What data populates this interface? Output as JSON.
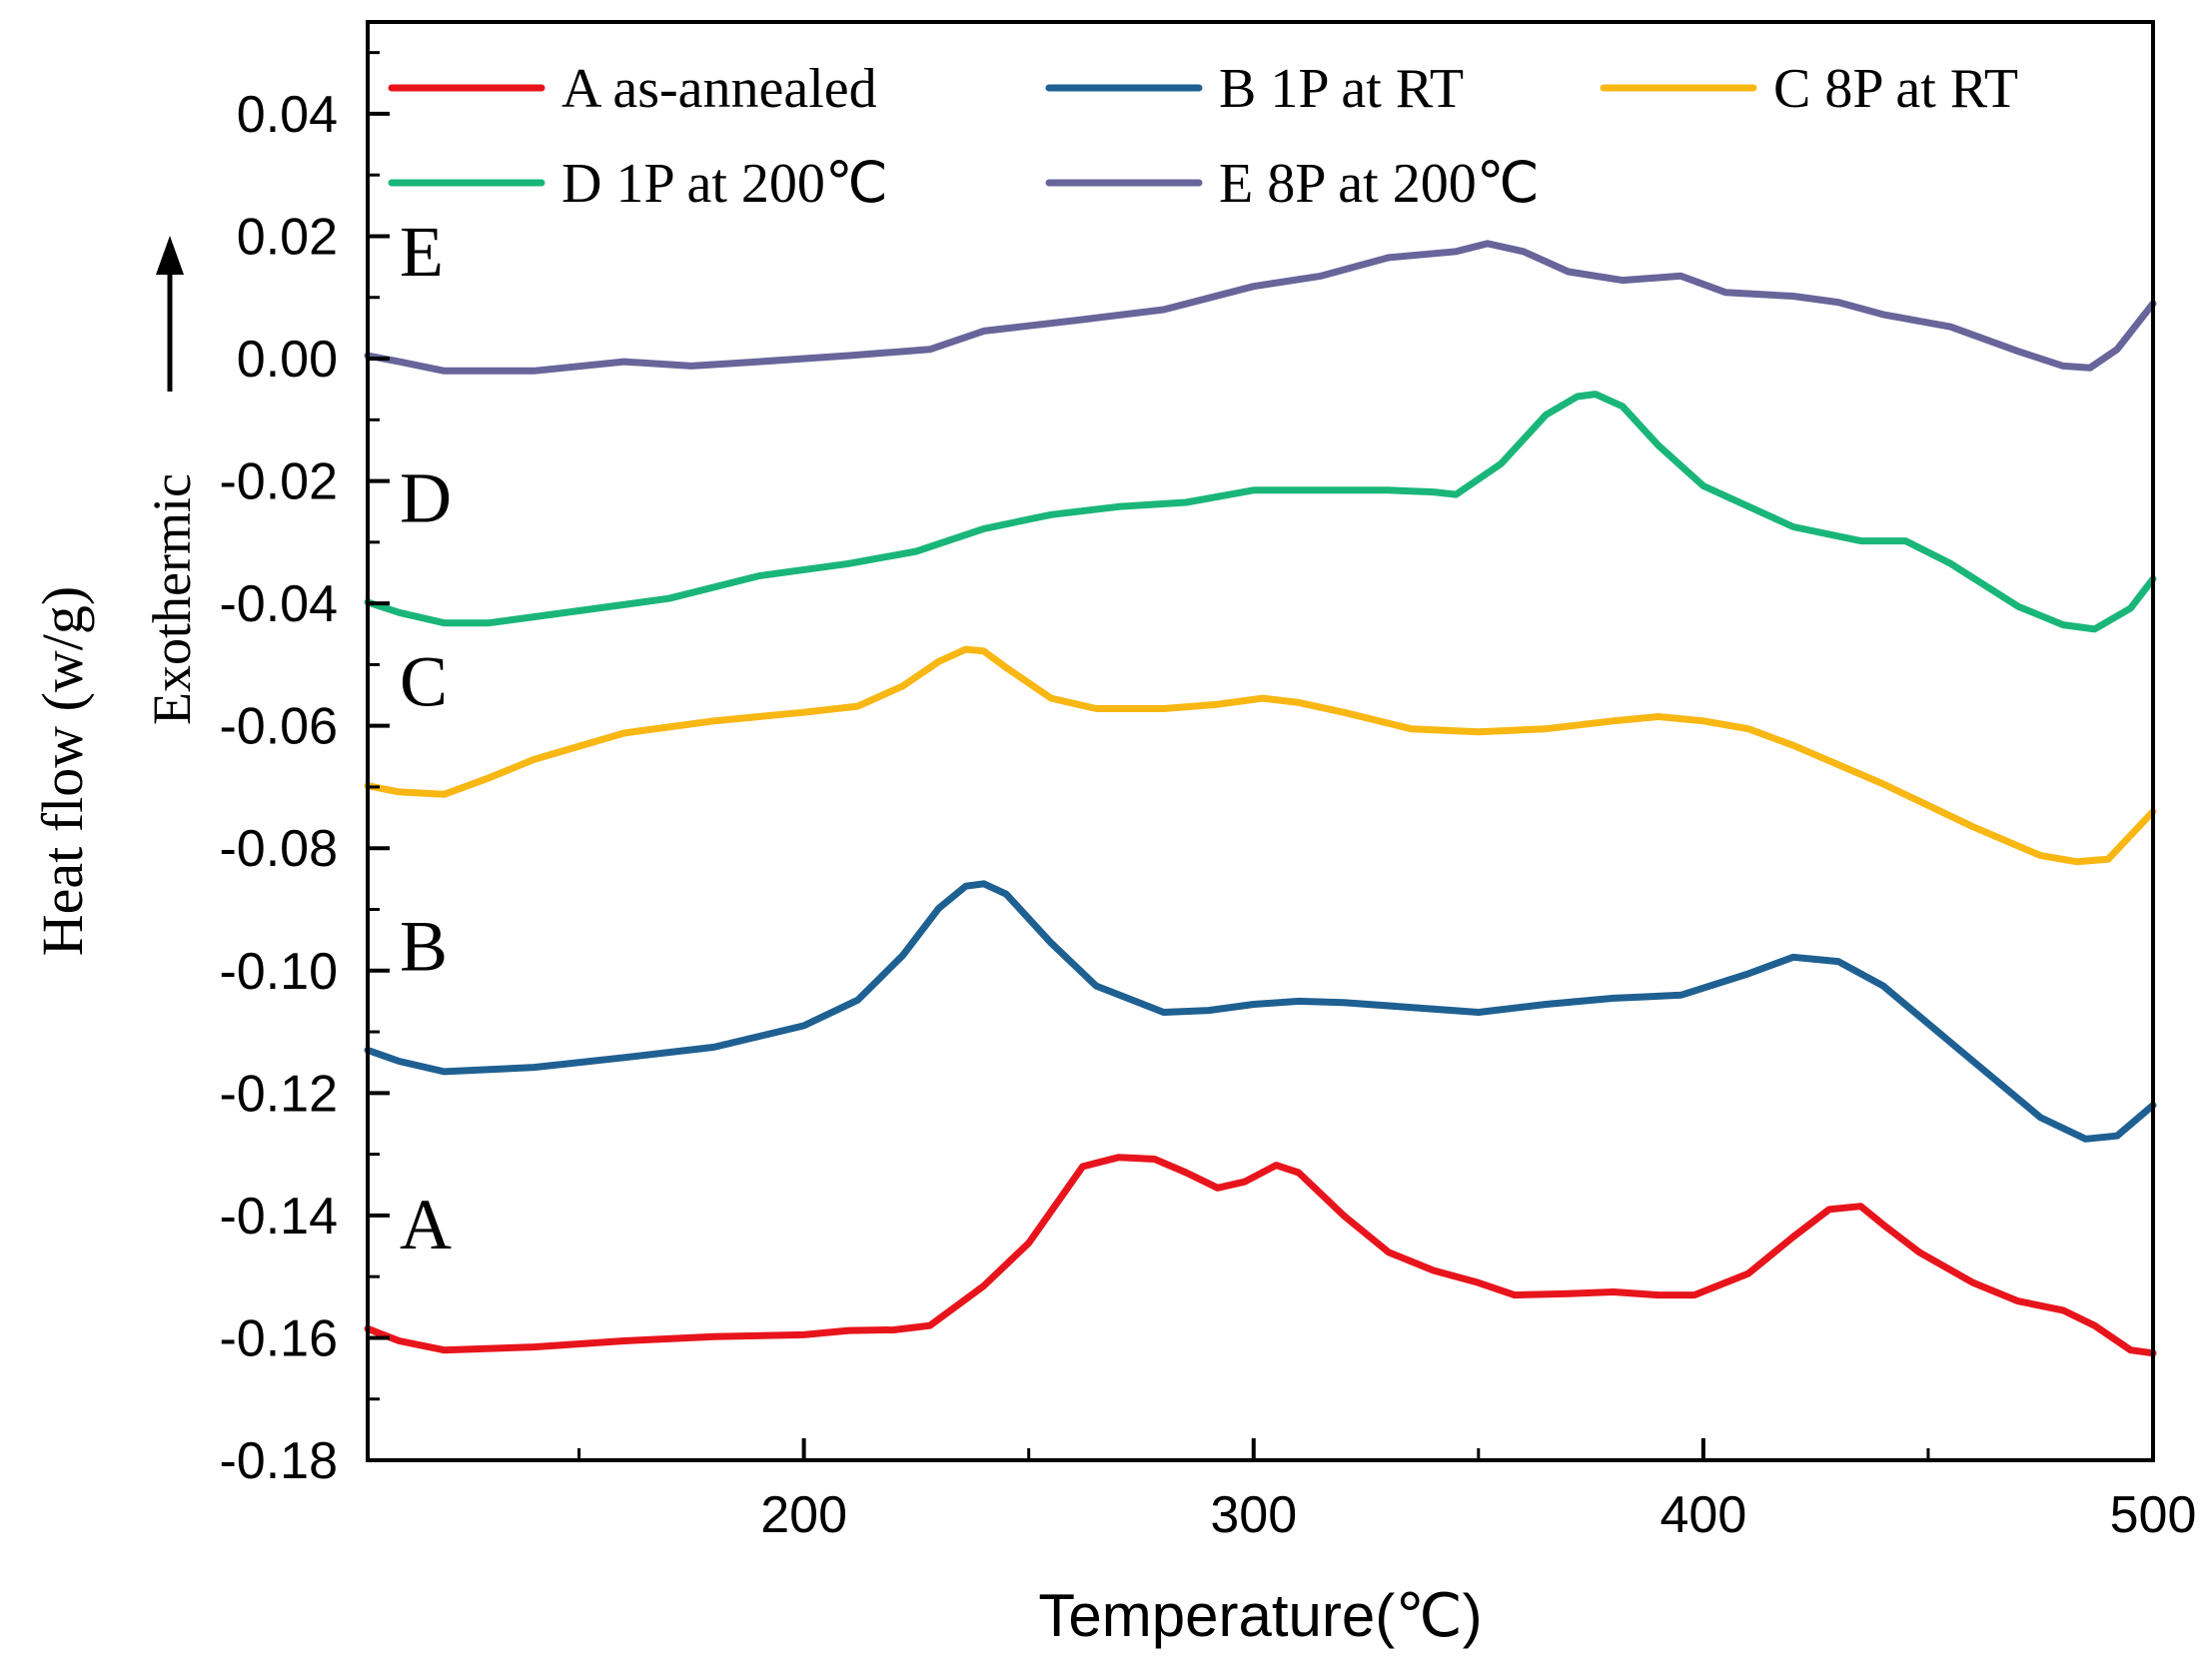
{
  "chart_data": {
    "type": "line",
    "title": "",
    "xlabel": "Temperature(℃)",
    "ylabel": "Heat flow (w/g)",
    "annotation": "Exothermic",
    "xlim": [
      103,
      500
    ],
    "ylim": [
      -0.18,
      0.055
    ],
    "xticks": [
      200,
      300,
      400,
      500
    ],
    "xtick_labels": [
      "200",
      "300",
      "400",
      "500"
    ],
    "yticks": [
      0.04,
      0.02,
      0.0,
      -0.02,
      -0.04,
      -0.06,
      -0.08,
      -0.1,
      -0.12,
      -0.14,
      -0.16,
      -0.18
    ],
    "ytick_labels": [
      "0.04",
      "0.02",
      "0.00",
      "-0.02",
      "-0.04",
      "-0.06",
      "-0.08",
      "-0.10",
      "-0.12",
      "-0.14",
      "-0.16",
      "-0.18"
    ],
    "grid": false,
    "legend_position": "top",
    "series": [
      {
        "name": "A as-annealed",
        "short": "A",
        "color": "#e8141c",
        "x": [
          103,
          110,
          120,
          140,
          160,
          180,
          200,
          210,
          220,
          228,
          240,
          250,
          262,
          270,
          278,
          285,
          292,
          298,
          305,
          310,
          320,
          330,
          340,
          350,
          358,
          370,
          380,
          390,
          398,
          410,
          420,
          428,
          435,
          440,
          448,
          460,
          470,
          480,
          487,
          495,
          500
        ],
        "y": [
          -0.1585,
          -0.1605,
          -0.162,
          -0.1615,
          -0.1605,
          -0.1598,
          -0.1595,
          -0.1588,
          -0.1587,
          -0.158,
          -0.1515,
          -0.1445,
          -0.132,
          -0.1305,
          -0.1308,
          -0.133,
          -0.1355,
          -0.1345,
          -0.1318,
          -0.133,
          -0.14,
          -0.146,
          -0.149,
          -0.151,
          -0.153,
          -0.1528,
          -0.1525,
          -0.153,
          -0.153,
          -0.1495,
          -0.1435,
          -0.139,
          -0.1385,
          -0.1415,
          -0.146,
          -0.151,
          -0.154,
          -0.1555,
          -0.158,
          -0.162,
          -0.1625
        ]
      },
      {
        "name": "B 1P at RT",
        "short": "B",
        "color": "#1f6092",
        "x": [
          103,
          110,
          120,
          140,
          160,
          180,
          200,
          212,
          222,
          230,
          236,
          240,
          245,
          255,
          265,
          280,
          290,
          300,
          310,
          320,
          335,
          350,
          365,
          380,
          395,
          410,
          420,
          430,
          440,
          460,
          475,
          485,
          492,
          500
        ],
        "y": [
          -0.113,
          -0.1148,
          -0.1165,
          -0.1158,
          -0.1142,
          -0.1125,
          -0.109,
          -0.1048,
          -0.0975,
          -0.0898,
          -0.0862,
          -0.0858,
          -0.0875,
          -0.0955,
          -0.1025,
          -0.1068,
          -0.1065,
          -0.1055,
          -0.105,
          -0.1052,
          -0.106,
          -0.1068,
          -0.1055,
          -0.1045,
          -0.104,
          -0.1005,
          -0.0978,
          -0.0985,
          -0.1025,
          -0.1148,
          -0.124,
          -0.1275,
          -0.127,
          -0.122
        ]
      },
      {
        "name": "C 8P at RT",
        "short": "C",
        "color": "#f9b714",
        "x": [
          103,
          110,
          120,
          130,
          140,
          160,
          180,
          200,
          212,
          222,
          230,
          236,
          240,
          245,
          255,
          265,
          280,
          292,
          302,
          310,
          320,
          335,
          350,
          365,
          380,
          390,
          400,
          410,
          420,
          440,
          460,
          475,
          483,
          490,
          500
        ],
        "y": [
          -0.0698,
          -0.0708,
          -0.0712,
          -0.0685,
          -0.0655,
          -0.0612,
          -0.0592,
          -0.0578,
          -0.0568,
          -0.0535,
          -0.0495,
          -0.0475,
          -0.0478,
          -0.0505,
          -0.0555,
          -0.0572,
          -0.0572,
          -0.0565,
          -0.0555,
          -0.0562,
          -0.0578,
          -0.0605,
          -0.061,
          -0.0605,
          -0.0592,
          -0.0585,
          -0.0592,
          -0.0605,
          -0.0632,
          -0.0695,
          -0.0765,
          -0.0812,
          -0.0822,
          -0.0818,
          -0.074
        ]
      },
      {
        "name": "D 1P at 200℃",
        "short": "D",
        "color": "#1ab679",
        "x": [
          103,
          110,
          120,
          130,
          150,
          170,
          190,
          210,
          225,
          240,
          255,
          270,
          285,
          300,
          315,
          330,
          340,
          345,
          355,
          365,
          372,
          376,
          382,
          390,
          400,
          420,
          435,
          445,
          455,
          470,
          480,
          487,
          495,
          500
        ],
        "y": [
          -0.0398,
          -0.0415,
          -0.0432,
          -0.0432,
          -0.0412,
          -0.0392,
          -0.0355,
          -0.0335,
          -0.0315,
          -0.0278,
          -0.0255,
          -0.0242,
          -0.0235,
          -0.0215,
          -0.0215,
          -0.0215,
          -0.0218,
          -0.0222,
          -0.0172,
          -0.0092,
          -0.0062,
          -0.0058,
          -0.0078,
          -0.0142,
          -0.0208,
          -0.0275,
          -0.0298,
          -0.0298,
          -0.0335,
          -0.0405,
          -0.0435,
          -0.0442,
          -0.0408,
          -0.036
        ]
      },
      {
        "name": "E 8P at 200℃",
        "short": "E",
        "color": "#67659a",
        "x": [
          103,
          110,
          120,
          140,
          160,
          175,
          190,
          210,
          228,
          240,
          260,
          280,
          300,
          315,
          330,
          345,
          352,
          360,
          370,
          382,
          395,
          405,
          420,
          430,
          440,
          455,
          470,
          480,
          486,
          492,
          500
        ],
        "y": [
          0.0005,
          -0.0005,
          -0.002,
          -0.002,
          -0.0005,
          -0.0012,
          -0.0005,
          0.0005,
          0.0015,
          0.0045,
          0.0062,
          0.008,
          0.0118,
          0.0135,
          0.0165,
          0.0175,
          0.0188,
          0.0175,
          0.0142,
          0.0128,
          0.0135,
          0.0108,
          0.0102,
          0.0092,
          0.0072,
          0.0052,
          0.0012,
          -0.0012,
          -0.0015,
          0.0015,
          0.009
        ]
      }
    ]
  }
}
